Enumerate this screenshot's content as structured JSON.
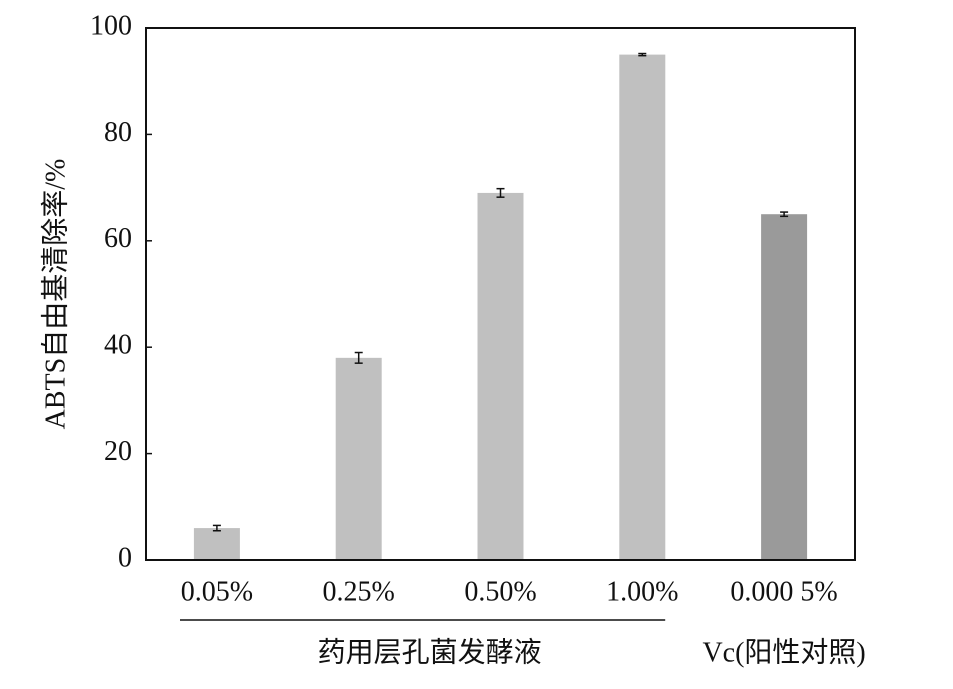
{
  "chart_data": {
    "type": "bar",
    "y_label": "ABTS自由基清除率/%",
    "categories": [
      "0.05%",
      "0.25%",
      "0.50%",
      "1.00%",
      "0.000 5%"
    ],
    "values": [
      6,
      38,
      69,
      95,
      65
    ],
    "errors": [
      0.5,
      1,
      0.8,
      0.2,
      0.4
    ],
    "colors": [
      "#c0c0c0",
      "#c0c0c0",
      "#c0c0c0",
      "#c0c0c0",
      "#9a9a9a"
    ],
    "groups": [
      {
        "label": "药用层孔菌发酵液",
        "count": 4,
        "underline": true
      },
      {
        "label": "Vc(阳性对照)",
        "count": 1,
        "underline": false
      }
    ],
    "ylim": [
      0,
      100
    ],
    "yticks": [
      0,
      20,
      40,
      60,
      80,
      100
    ]
  }
}
